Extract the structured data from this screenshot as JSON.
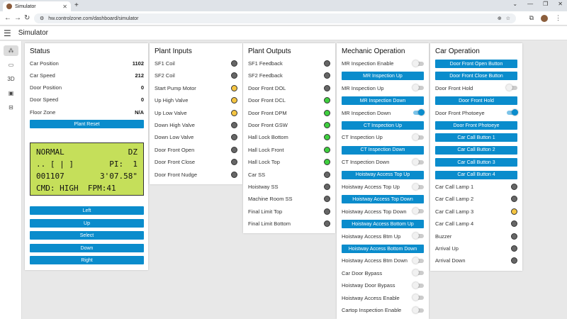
{
  "browser": {
    "tab_title": "Simulator",
    "url": "hw.controlzone.com/dashboard/simulator"
  },
  "app": {
    "title": "Simulator"
  },
  "rail": [
    {
      "icon": "hub-icon",
      "label": "⁂"
    },
    {
      "icon": "camera-icon",
      "label": "▭"
    },
    {
      "icon": "3d-icon",
      "label": "3D"
    },
    {
      "icon": "id-card-icon",
      "label": "▣"
    },
    {
      "icon": "desktop-icon",
      "label": "⊟"
    }
  ],
  "status": {
    "title": "Status",
    "rows": [
      {
        "label": "Car Position",
        "value": "1102"
      },
      {
        "label": "Car Speed",
        "value": "212"
      },
      {
        "label": "Door Position",
        "value": "0"
      },
      {
        "label": "Door Speed",
        "value": "0"
      },
      {
        "label": "Floor Zone",
        "value": "N/A"
      }
    ],
    "plant_reset": "Plant Reset",
    "lcd": {
      "l1a": "NORMAL",
      "l1b": "DZ",
      "l2a": ".. [ | ]",
      "l2b": "PI:  1",
      "l3a": "001107",
      "l3b": "3'07.58\"",
      "l4": "CMD: HIGH  FPM:41"
    },
    "nav_buttons": [
      "Left",
      "Up",
      "Select",
      "Down",
      "Right"
    ]
  },
  "plant_inputs": {
    "title": "Plant Inputs",
    "items": [
      {
        "label": "SF1 Coil",
        "lamp": "gray"
      },
      {
        "label": "SF2 Coil",
        "lamp": "gray"
      },
      {
        "label": "Start Pump Motor",
        "lamp": "yellow"
      },
      {
        "label": "Up High Valve",
        "lamp": "yellow"
      },
      {
        "label": "Up Low Valve",
        "lamp": "yellow"
      },
      {
        "label": "Down High Valve",
        "lamp": "gray"
      },
      {
        "label": "Down Low Valve",
        "lamp": "gray"
      },
      {
        "label": "Door Front Open",
        "lamp": "gray"
      },
      {
        "label": "Door Front Close",
        "lamp": "gray"
      },
      {
        "label": "Door Front Nudge",
        "lamp": "gray"
      }
    ]
  },
  "plant_outputs": {
    "title": "Plant Outputs",
    "items": [
      {
        "label": "SF1 Feedback",
        "lamp": "gray"
      },
      {
        "label": "SF2 Feedback",
        "lamp": "gray"
      },
      {
        "label": "Door Front DOL",
        "lamp": "gray"
      },
      {
        "label": "Door Front DCL",
        "lamp": "green"
      },
      {
        "label": "Door Front DPM",
        "lamp": "green"
      },
      {
        "label": "Door Front GSW",
        "lamp": "green"
      },
      {
        "label": "Hall Lock Bottom",
        "lamp": "green"
      },
      {
        "label": "Hall Lock Front",
        "lamp": "green"
      },
      {
        "label": "Hall Lock Top",
        "lamp": "green"
      },
      {
        "label": "Car SS",
        "lamp": "gray"
      },
      {
        "label": "Hoistway SS",
        "lamp": "gray"
      },
      {
        "label": "Machine Room SS",
        "lamp": "gray"
      },
      {
        "label": "Final Limit Top",
        "lamp": "gray"
      },
      {
        "label": "Final Limit Bottom",
        "lamp": "gray"
      }
    ]
  },
  "mechanic": {
    "title": "Mechanic Operation",
    "items": [
      {
        "kind": "toggle",
        "label": "MR Inspection Enable",
        "on": false
      },
      {
        "kind": "button",
        "label": "MR Inspection Up"
      },
      {
        "kind": "toggle",
        "label": "MR Inspection Up",
        "on": false
      },
      {
        "kind": "button",
        "label": "MR Inspection Down"
      },
      {
        "kind": "toggle",
        "label": "MR Inspection Down",
        "on": true
      },
      {
        "kind": "button",
        "label": "CT Inspection Up"
      },
      {
        "kind": "toggle",
        "label": "CT Inspection Up",
        "on": false
      },
      {
        "kind": "button",
        "label": "CT Inspection Down"
      },
      {
        "kind": "toggle",
        "label": "CT Inspection Down",
        "on": false
      },
      {
        "kind": "button",
        "label": "Hoistway Access Top Up"
      },
      {
        "kind": "toggle",
        "label": "Hoistway Access Top Up",
        "on": false
      },
      {
        "kind": "button",
        "label": "Hoistway Access Top Down"
      },
      {
        "kind": "toggle",
        "label": "Hoistway Access Top Down",
        "on": false
      },
      {
        "kind": "button",
        "label": "Hoistway Access Bottom Up"
      },
      {
        "kind": "toggle",
        "label": "Hoistway Access Btm Up",
        "on": false
      },
      {
        "kind": "button",
        "label": "Hoistway Access Bottom Down"
      },
      {
        "kind": "toggle",
        "label": "Hoistway Access Btm Down",
        "on": false
      },
      {
        "kind": "toggle",
        "label": "Car Door Bypass",
        "on": false
      },
      {
        "kind": "toggle",
        "label": "Hoistway Door Bypass",
        "on": false
      },
      {
        "kind": "toggle",
        "label": "Hoistway Access Enable",
        "on": false
      },
      {
        "kind": "toggle",
        "label": "Cartop Inspection Enable",
        "on": false
      }
    ]
  },
  "car_operation": {
    "title": "Car Operation",
    "items": [
      {
        "kind": "button",
        "label": "Door Front Open Button"
      },
      {
        "kind": "button",
        "label": "Door Front Close Button"
      },
      {
        "kind": "toggle",
        "label": "Door Front Hold",
        "on": false
      },
      {
        "kind": "button",
        "label": "Door Front Hold"
      },
      {
        "kind": "toggle",
        "label": "Door Front Photoeye",
        "on": true
      },
      {
        "kind": "button",
        "label": "Door Front Photoeye"
      },
      {
        "kind": "button",
        "label": "Car Call Button 1"
      },
      {
        "kind": "button",
        "label": "Car Call Button 2"
      },
      {
        "kind": "button",
        "label": "Car Call Button 3"
      },
      {
        "kind": "button",
        "label": "Car Call Button 4"
      },
      {
        "kind": "lamp",
        "label": "Car Call Lamp 1",
        "lamp": "gray"
      },
      {
        "kind": "lamp",
        "label": "Car Call Lamp 2",
        "lamp": "gray"
      },
      {
        "kind": "lamp",
        "label": "Car Call Lamp 3",
        "lamp": "yellow"
      },
      {
        "kind": "lamp",
        "label": "Car Call Lamp 4",
        "lamp": "gray"
      },
      {
        "kind": "lamp",
        "label": "Buzzer",
        "lamp": "gray"
      },
      {
        "kind": "lamp",
        "label": "Arrival Up",
        "lamp": "gray"
      },
      {
        "kind": "lamp",
        "label": "Arrival Down",
        "lamp": "gray"
      }
    ]
  }
}
